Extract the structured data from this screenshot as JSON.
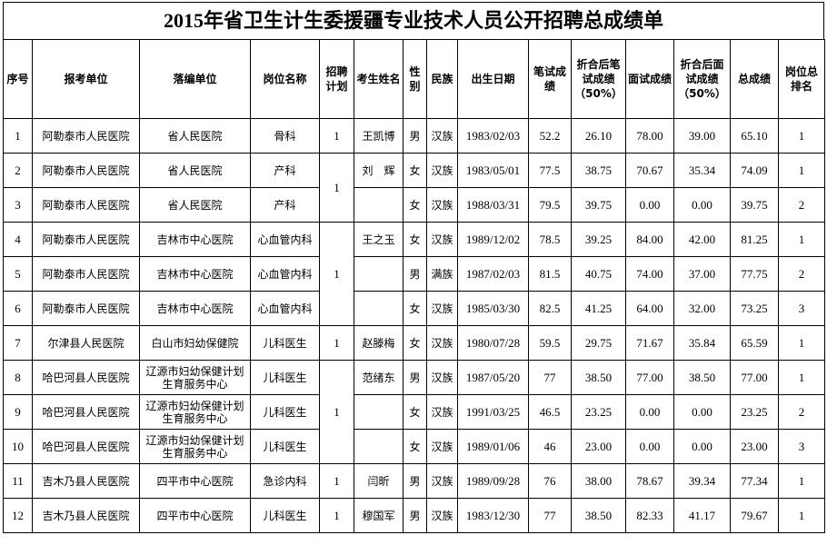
{
  "header": {
    "title": "2015年省卫生计生委援疆专业技术人员公开招聘总成绩单"
  },
  "table": {
    "columns": [
      "序号",
      "报考单位",
      "落编单位",
      "岗位名称",
      "招聘计划",
      "考生姓名",
      "性别",
      "民族",
      "出生日期",
      "笔试成绩",
      "折合后笔试成绩（50%）",
      "面试成绩",
      "折合后面试成绩（50%）",
      "总成绩",
      "岗位总排名"
    ],
    "rows": [
      [
        "1",
        "阿勒泰市人民医院",
        "省人民医院",
        "骨科",
        "1",
        "王凯博",
        "男",
        "汉族",
        "1983/02/03",
        "52.2",
        "26.10",
        "78.00",
        "39.00",
        "65.10",
        "1"
      ],
      [
        "2",
        "阿勒泰市人民医院",
        "省人民医院",
        "产科",
        "1",
        "刘　辉",
        "女",
        "汉族",
        "1983/05/01",
        "77.5",
        "38.75",
        "70.67",
        "35.34",
        "74.09",
        "1"
      ],
      [
        "3",
        "阿勒泰市人民医院",
        "省人民医院",
        "产科",
        null,
        null,
        "女",
        "汉族",
        "1988/03/31",
        "79.5",
        "39.75",
        "0.00",
        "0.00",
        "39.75",
        "2"
      ],
      [
        "4",
        "阿勒泰市人民医院",
        "吉林市中心医院",
        "心血管内科",
        "1",
        "王之玉",
        "女",
        "汉族",
        "1989/12/02",
        "78.5",
        "39.25",
        "84.00",
        "42.00",
        "81.25",
        "1"
      ],
      [
        "5",
        "阿勒泰市人民医院",
        "吉林市中心医院",
        "心血管内科",
        null,
        null,
        "男",
        "满族",
        "1987/02/03",
        "81.5",
        "40.75",
        "74.00",
        "37.00",
        "77.75",
        "2"
      ],
      [
        "6",
        "阿勒泰市人民医院",
        "吉林市中心医院",
        "心血管内科",
        null,
        null,
        "女",
        "汉族",
        "1985/03/30",
        "82.5",
        "41.25",
        "64.00",
        "32.00",
        "73.25",
        "3"
      ],
      [
        "7",
        "尔津县人民医院",
        "白山市妇幼保健院",
        "儿科医生",
        "1",
        "赵滕梅",
        "女",
        "汉族",
        "1980/07/28",
        "59.5",
        "29.75",
        "71.67",
        "35.84",
        "65.59",
        "1"
      ],
      [
        "8",
        "哈巴河县人民医院",
        "辽源市妇幼保健计划生育服务中心",
        "儿科医生",
        "1",
        "范绪东",
        "男",
        "汉族",
        "1987/05/20",
        "77",
        "38.50",
        "77.00",
        "38.50",
        "77.00",
        "1"
      ],
      [
        "9",
        "哈巴河县人民医院",
        "辽源市妇幼保健计划生育服务中心",
        "儿科医生",
        null,
        null,
        "女",
        "汉族",
        "1991/03/25",
        "46.5",
        "23.25",
        "0.00",
        "0.00",
        "23.25",
        "2"
      ],
      [
        "10",
        "哈巴河县人民医院",
        "辽源市妇幼保健计划生育服务中心",
        "儿科医生",
        null,
        null,
        "女",
        "汉族",
        "1989/01/06",
        "46",
        "23.00",
        "0.00",
        "0.00",
        "23.00",
        "3"
      ],
      [
        "11",
        "吉木乃县人民医院",
        "四平市中心医院",
        "急诊内科",
        "1",
        "闫昕",
        "男",
        "汉族",
        "1989/09/28",
        "76",
        "38.00",
        "78.67",
        "39.34",
        "77.34",
        "1"
      ],
      [
        "12",
        "吉木乃县人民医院",
        "四平市中心医院",
        "儿科医生",
        "1",
        "穆国军",
        "男",
        "汉族",
        "1983/12/30",
        "77",
        "38.50",
        "82.33",
        "41.17",
        "79.67",
        "1"
      ]
    ]
  }
}
